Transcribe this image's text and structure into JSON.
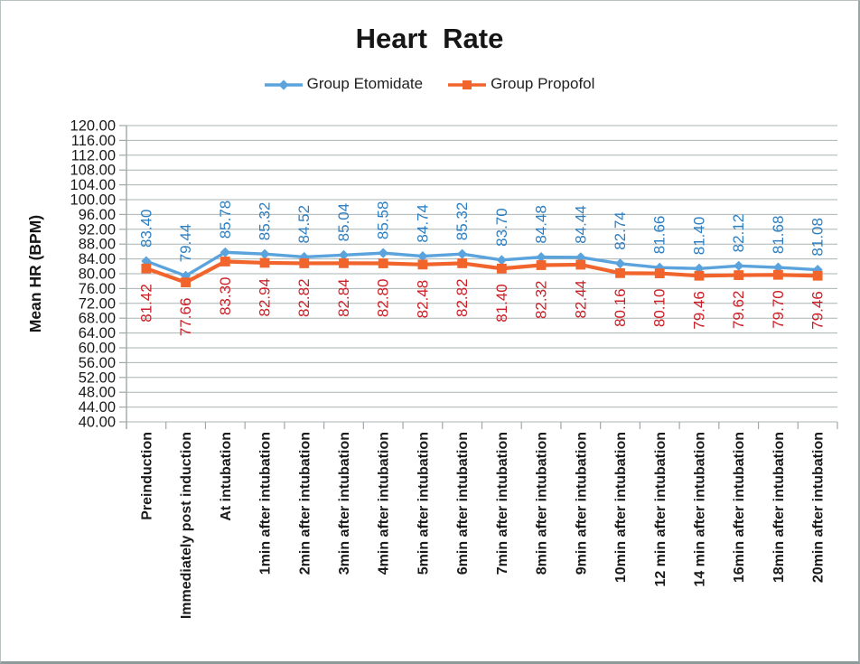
{
  "figure": {
    "title": "Heart  Rate"
  },
  "legend": {
    "items": [
      {
        "label": "Group Etomidate",
        "color": "#5BA3DC",
        "marker": "diamond"
      },
      {
        "label": "Group Propofol",
        "color": "#F1642C",
        "marker": "square"
      }
    ]
  },
  "chart_data": {
    "type": "line",
    "title": "Heart  Rate",
    "xlabel": "",
    "ylabel": "Mean HR (BPM)",
    "ylim": [
      40,
      120
    ],
    "ytick_step": 4,
    "grid": "horizontal",
    "legend_position": "top",
    "categories": [
      "Preinduction",
      "Immediately post induction",
      "At intubation",
      "1min after intubation",
      "2min after intubation",
      "3min after intubation",
      "4min after intubation",
      "5min after intubation",
      "6min after intubation",
      "7min after intubation",
      "8min after intubation",
      "9min after intubation",
      "10min after intubation",
      "12 min after intubation",
      "14 min after intubation",
      "16min after intubation",
      "18min after intubation",
      "20min after intubation"
    ],
    "series": [
      {
        "name": "Group Etomidate",
        "color": "#5BA3DC",
        "label_color": "#2E7FC1",
        "marker": "diamond",
        "label_position": "above",
        "values": [
          83.4,
          79.44,
          85.78,
          85.32,
          84.52,
          85.04,
          85.58,
          84.74,
          85.32,
          83.7,
          84.48,
          84.44,
          82.74,
          81.66,
          81.4,
          82.12,
          81.68,
          81.08
        ]
      },
      {
        "name": "Group Propofol",
        "color": "#F1642C",
        "label_color": "#CC2027",
        "marker": "square",
        "label_position": "below",
        "values": [
          81.42,
          77.66,
          83.3,
          82.94,
          82.82,
          82.84,
          82.8,
          82.48,
          82.82,
          81.4,
          82.32,
          82.44,
          80.16,
          80.1,
          79.46,
          79.62,
          79.7,
          79.46
        ]
      }
    ],
    "colors": {
      "grid": "#A9B3B3",
      "axis": "#9FA9A9",
      "tick_label": "#1A1A1A"
    }
  }
}
